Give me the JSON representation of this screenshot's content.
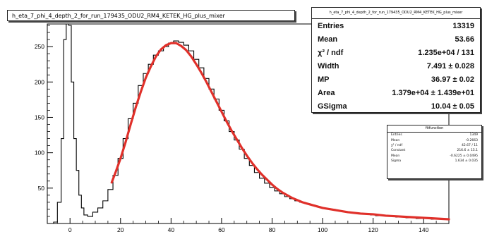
{
  "chart_data": {
    "type": "histogram",
    "title": "h_eta_7_phi_4_depth_2_for_run_179435_ODU2_RM4_KETEK_HG_plus_mixer",
    "xlabel": "",
    "ylabel": "",
    "xlim": [
      -9,
      150
    ],
    "ylim": [
      0,
      282
    ],
    "xticks": [
      0,
      20,
      40,
      60,
      80,
      100,
      120,
      140
    ],
    "yticks": [
      50,
      100,
      150,
      200,
      250
    ],
    "grid": false,
    "histogram": {
      "name": "h_eta_7_phi_4_depth_2_for_run_179435_ODU2_RM4_KETEK_HG_plus_mixer",
      "color": "#000000",
      "points": [
        [
          -6,
          2
        ],
        [
          -4,
          30
        ],
        [
          -3,
          120
        ],
        [
          -2,
          260
        ],
        [
          -1,
          285
        ],
        [
          0,
          280
        ],
        [
          1,
          200
        ],
        [
          2,
          120
        ],
        [
          3,
          75
        ],
        [
          4,
          40
        ],
        [
          5,
          22
        ],
        [
          6,
          12
        ],
        [
          8,
          10
        ],
        [
          10,
          16
        ],
        [
          12,
          22
        ],
        [
          14,
          32
        ],
        [
          16,
          48
        ],
        [
          18,
          68
        ],
        [
          20,
          92
        ],
        [
          22,
          120
        ],
        [
          24,
          148
        ],
        [
          26,
          170
        ],
        [
          28,
          195
        ],
        [
          30,
          212
        ],
        [
          32,
          225
        ],
        [
          34,
          238
        ],
        [
          36,
          244
        ],
        [
          38,
          250
        ],
        [
          40,
          255
        ],
        [
          42,
          258
        ],
        [
          44,
          256
        ],
        [
          46,
          252
        ],
        [
          48,
          244
        ],
        [
          50,
          232
        ],
        [
          52,
          220
        ],
        [
          54,
          205
        ],
        [
          56,
          190
        ],
        [
          58,
          176
        ],
        [
          60,
          160
        ],
        [
          62,
          145
        ],
        [
          64,
          130
        ],
        [
          66,
          118
        ],
        [
          68,
          105
        ],
        [
          70,
          92
        ],
        [
          72,
          82
        ],
        [
          74,
          72
        ],
        [
          76,
          64
        ],
        [
          78,
          57
        ],
        [
          80,
          51
        ],
        [
          82,
          46
        ],
        [
          84,
          42
        ],
        [
          86,
          38
        ],
        [
          88,
          35
        ],
        [
          90,
          32
        ],
        [
          92,
          30
        ],
        [
          94,
          28
        ],
        [
          96,
          26
        ],
        [
          98,
          24
        ],
        [
          100,
          22
        ],
        [
          102,
          21
        ],
        [
          104,
          20
        ],
        [
          106,
          18
        ],
        [
          108,
          17
        ],
        [
          110,
          16
        ],
        [
          112,
          15
        ],
        [
          114,
          14
        ],
        [
          116,
          14
        ],
        [
          118,
          13
        ],
        [
          120,
          12
        ],
        [
          122,
          11
        ],
        [
          124,
          11
        ],
        [
          126,
          10
        ],
        [
          128,
          10
        ],
        [
          130,
          9
        ],
        [
          132,
          9
        ],
        [
          134,
          8
        ],
        [
          136,
          8
        ],
        [
          138,
          7
        ],
        [
          140,
          7
        ],
        [
          142,
          7
        ],
        [
          144,
          6
        ],
        [
          146,
          6
        ],
        [
          148,
          6
        ]
      ]
    },
    "fit": {
      "name": "fit",
      "color": "#e0302a",
      "x": [
        16.5,
        18,
        20,
        22,
        24,
        26,
        28,
        30,
        32,
        34,
        36,
        38,
        40,
        42,
        44,
        46,
        48,
        50,
        52,
        54,
        56,
        58,
        60,
        62,
        64,
        66,
        68,
        70,
        72,
        74,
        76,
        78,
        80,
        82,
        84,
        86,
        88,
        90,
        92,
        94,
        96,
        98,
        100,
        105,
        110,
        115,
        120,
        125,
        130,
        135,
        140,
        145,
        150
      ],
      "y": [
        58,
        72,
        92,
        115,
        140,
        164,
        186,
        206,
        222,
        236,
        246,
        252,
        255,
        255,
        251,
        245,
        236,
        225,
        213,
        200,
        186,
        172,
        158,
        144,
        131,
        119,
        107,
        96,
        86,
        77,
        69,
        62,
        55,
        49,
        44,
        40,
        36,
        33,
        30,
        28,
        26,
        24,
        22,
        19,
        16,
        14,
        13,
        11,
        10,
        9,
        8,
        7,
        6
      ]
    }
  },
  "stats_main": {
    "title": "h_eta_7_phi_4_depth_2_for_run_179435_ODU2_RM4_KETEK_HG_plus_mixer",
    "rows": [
      {
        "label": "Entries",
        "value": "13319"
      },
      {
        "label": "Mean",
        "value": "53.66"
      },
      {
        "label": "χ² / ndf",
        "value": "1.235e+04 / 131"
      },
      {
        "label": "Width",
        "value": "7.491 ± 0.028"
      },
      {
        "label": "MP",
        "value": "36.97 ± 0.02"
      },
      {
        "label": "Area",
        "value": "1.379e+04 ± 1.439e+01"
      },
      {
        "label": "GSigma",
        "value": "10.04 ± 0.05"
      }
    ]
  },
  "stats_small": {
    "title": "fitfunction",
    "rows": [
      {
        "label": "Entries",
        "value": "1349"
      },
      {
        "label": "Mean",
        "value": "-0.2663"
      },
      {
        "label": "χ² / ndf",
        "value": "42.67 / 11"
      },
      {
        "label": "Constant",
        "value": "216.6 ± 15.1"
      },
      {
        "label": "Mean",
        "value": "-0.6225 ± 0.0495"
      },
      {
        "label": "Sigma",
        "value": "1.634 ± 0.035"
      }
    ]
  }
}
